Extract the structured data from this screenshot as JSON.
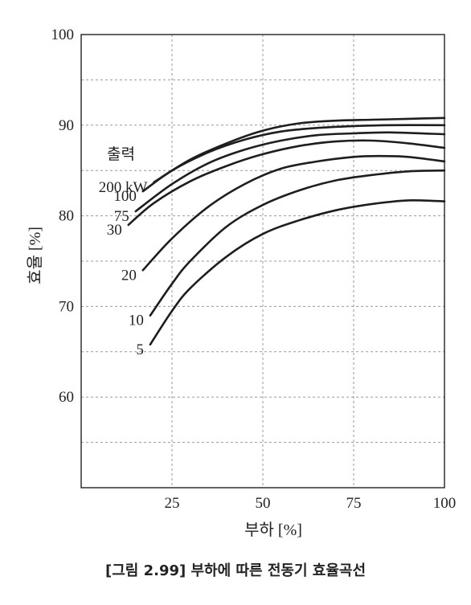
{
  "chart_data": {
    "type": "line",
    "title": "",
    "xlabel": "부하 [%]",
    "ylabel": "효율 [%]",
    "xlim": [
      0,
      100
    ],
    "ylim": [
      50,
      100
    ],
    "xticks": [
      25,
      50,
      75,
      100
    ],
    "yticks": [
      60,
      70,
      80,
      90,
      100
    ],
    "xticks_labels": [
      "25",
      "50",
      "75",
      "100"
    ],
    "yticks_labels": [
      "60",
      "70",
      "80",
      "90",
      "100"
    ],
    "grid": true,
    "legend_title": "출력",
    "series": [
      {
        "name": "200 kW",
        "points": [
          [
            20,
            83.7
          ],
          [
            30,
            86.2
          ],
          [
            40,
            88.0
          ],
          [
            50,
            89.4
          ],
          [
            60,
            90.2
          ],
          [
            70,
            90.5
          ],
          [
            80,
            90.6
          ],
          [
            90,
            90.7
          ],
          [
            100,
            90.8
          ]
        ]
      },
      {
        "name": "100",
        "points": [
          [
            17,
            82.7
          ],
          [
            25,
            85.0
          ],
          [
            35,
            87.0
          ],
          [
            45,
            88.4
          ],
          [
            55,
            89.3
          ],
          [
            65,
            89.7
          ],
          [
            75,
            89.9
          ],
          [
            85,
            90.0
          ],
          [
            100,
            90.0
          ]
        ]
      },
      {
        "name": "75",
        "points": [
          [
            15,
            80.5
          ],
          [
            25,
            83.5
          ],
          [
            35,
            85.8
          ],
          [
            45,
            87.3
          ],
          [
            55,
            88.3
          ],
          [
            65,
            88.9
          ],
          [
            75,
            89.1
          ],
          [
            85,
            89.2
          ],
          [
            100,
            89.0
          ]
        ]
      },
      {
        "name": "30",
        "points": [
          [
            13,
            79.0
          ],
          [
            20,
            81.4
          ],
          [
            30,
            83.8
          ],
          [
            40,
            85.5
          ],
          [
            50,
            86.8
          ],
          [
            60,
            87.7
          ],
          [
            70,
            88.2
          ],
          [
            80,
            88.3
          ],
          [
            90,
            88.0
          ],
          [
            100,
            87.5
          ]
        ]
      },
      {
        "name": "20",
        "points": [
          [
            17,
            74.0
          ],
          [
            25,
            77.5
          ],
          [
            35,
            81.0
          ],
          [
            45,
            83.5
          ],
          [
            55,
            85.2
          ],
          [
            65,
            86.0
          ],
          [
            75,
            86.5
          ],
          [
            82,
            86.6
          ],
          [
            90,
            86.5
          ],
          [
            100,
            86.0
          ]
        ]
      },
      {
        "name": "10",
        "points": [
          [
            19,
            69.0
          ],
          [
            25,
            72.5
          ],
          [
            30,
            75.0
          ],
          [
            40,
            78.8
          ],
          [
            50,
            81.2
          ],
          [
            60,
            82.8
          ],
          [
            70,
            83.9
          ],
          [
            80,
            84.5
          ],
          [
            90,
            84.9
          ],
          [
            100,
            85.0
          ]
        ]
      },
      {
        "name": "5",
        "points": [
          [
            19,
            65.8
          ],
          [
            25,
            69.5
          ],
          [
            30,
            72.0
          ],
          [
            40,
            75.5
          ],
          [
            50,
            78.0
          ],
          [
            60,
            79.5
          ],
          [
            70,
            80.6
          ],
          [
            80,
            81.3
          ],
          [
            90,
            81.7
          ],
          [
            100,
            81.6
          ]
        ]
      }
    ]
  },
  "caption": "[그림 2.99] 부하에 따른 전동기 효율곡선"
}
